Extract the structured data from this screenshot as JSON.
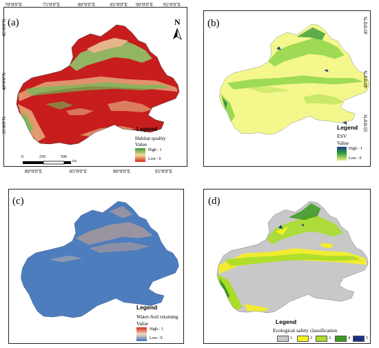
{
  "panels": {
    "a": {
      "label": "(a)",
      "top_ticks": [
        "70°0'0\"E",
        "75°0'0\"E",
        "80°0'0\"E",
        "85°0'0\"E",
        "90°0'0\"E",
        "95°0'0\"E"
      ],
      "bottom_ticks": [
        "80°0'0\"E",
        "85°0'0\"E",
        "90°0'0\"E",
        "95°0'0\"E"
      ],
      "left_ticks": [
        "45°0'0\"N",
        "40°0'0\"N",
        "35°0'0\"N"
      ],
      "north_label": "N",
      "legend_title": "Legend",
      "legend_layer": "Habitat quality",
      "legend_value": "Value",
      "legend_high": "High : 1",
      "legend_low": "Low : 0",
      "scale_labels": [
        "0",
        "250",
        "500"
      ],
      "scale_unit": "km",
      "colors": [
        "#c81d1d",
        "#e3a77a",
        "#6bbf59"
      ]
    },
    "b": {
      "label": "(b)",
      "right_ticks": [
        "45°0'0\"N",
        "40°0'0\"N",
        "35°0'0\"N"
      ],
      "legend_title": "Legend",
      "legend_layer": "ESV",
      "legend_value": "Value",
      "legend_high": "High : 1",
      "legend_low": "Low : 0",
      "colors": [
        "#f4f78c",
        "#b7e35a",
        "#2f8f3a",
        "#1f3f8f"
      ]
    },
    "c": {
      "label": "(c)",
      "legend_title": "Legend",
      "legend_layer": "Water-Soil retaining",
      "legend_value": "Value",
      "legend_high": "High : 1",
      "legend_low": "Low : 0",
      "colors": [
        "#4e7dbd",
        "#d9a88a"
      ]
    },
    "d": {
      "label": "(d)",
      "legend_title": "Legend",
      "legend_layer": "Ecological safety classification",
      "classes": [
        {
          "label": "1",
          "color": "#c8c8c8"
        },
        {
          "label": "2",
          "color": "#f5f020"
        },
        {
          "label": "3",
          "color": "#a9dd2a"
        },
        {
          "label": "4",
          "color": "#3a9a1f"
        },
        {
          "label": "5",
          "color": "#1c2f86"
        }
      ]
    }
  }
}
